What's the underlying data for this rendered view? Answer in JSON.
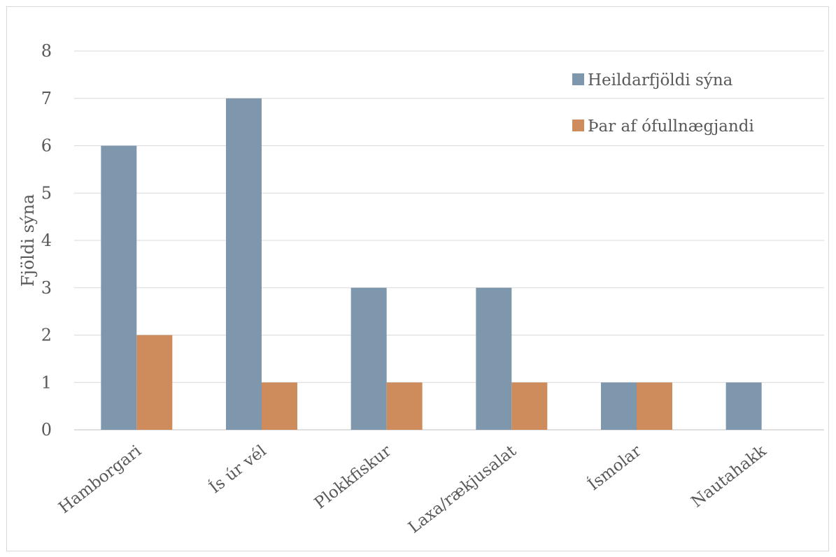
{
  "chart_data": {
    "type": "bar",
    "title": "",
    "xlabel": "",
    "ylabel": "Fjöldi sýna",
    "ylim": [
      0,
      8
    ],
    "yticks": [
      0,
      1,
      2,
      3,
      4,
      5,
      6,
      7,
      8
    ],
    "grid": true,
    "legend_position": "top-right",
    "categories": [
      "Hamborgari",
      "Ís úr vél",
      "Plokkfiskur",
      "Laxa/rækjusalat",
      "Ísmolar",
      "Nautahakk"
    ],
    "series": [
      {
        "name": "Heildarfjöldi sýna",
        "color": "#7F97AD",
        "values": [
          6,
          7,
          3,
          3,
          1,
          1
        ]
      },
      {
        "name": "Þar af ófullnægjandi",
        "color": "#CE8C5C",
        "values": [
          2,
          1,
          1,
          1,
          1,
          0
        ]
      }
    ]
  }
}
